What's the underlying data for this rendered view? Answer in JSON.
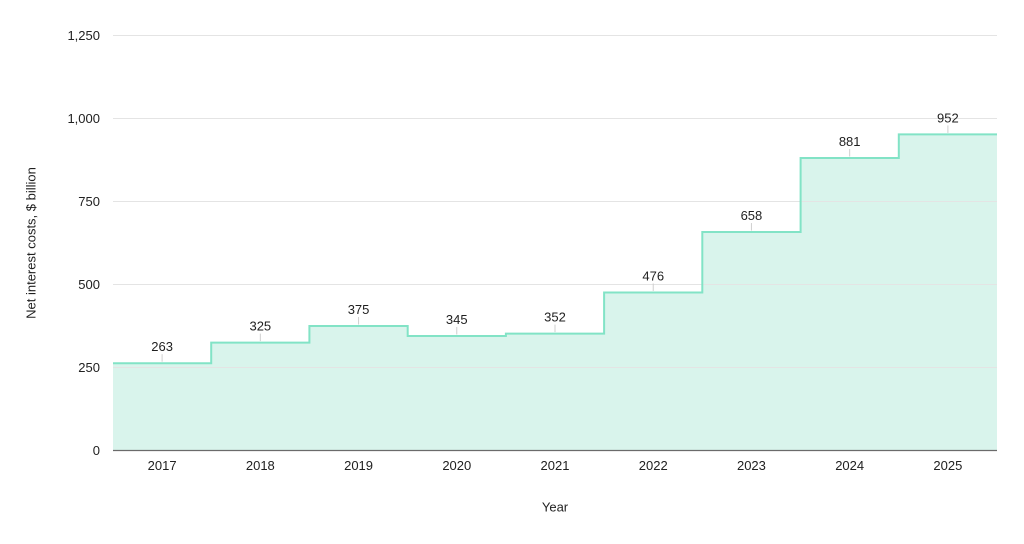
{
  "chart_data": {
    "type": "area",
    "step": true,
    "title": "",
    "xlabel": "Year",
    "ylabel": "Net interest costs, $ billion",
    "categories": [
      "2017",
      "2018",
      "2019",
      "2020",
      "2021",
      "2022",
      "2023",
      "2024",
      "2025"
    ],
    "values": [
      263,
      325,
      375,
      345,
      352,
      476,
      658,
      881,
      952
    ],
    "data_labels": [
      "263",
      "325",
      "375",
      "345",
      "352",
      "476",
      "658",
      "881",
      "952"
    ],
    "ylim": [
      0,
      1250
    ],
    "yticks": [
      0,
      250,
      500,
      750,
      1000,
      1250
    ],
    "ytick_labels": [
      "0",
      "250",
      "500",
      "750",
      "1,000",
      "1,250"
    ],
    "grid": true,
    "legend": false,
    "colors": {
      "line": "#82e3c6",
      "fill": "#d9f4ec",
      "gridline": "#e4e4e4",
      "axis_line": "#6b6b6b",
      "label_tick": "#cfcfcf",
      "text": "#212121",
      "background": "#ffffff"
    }
  }
}
